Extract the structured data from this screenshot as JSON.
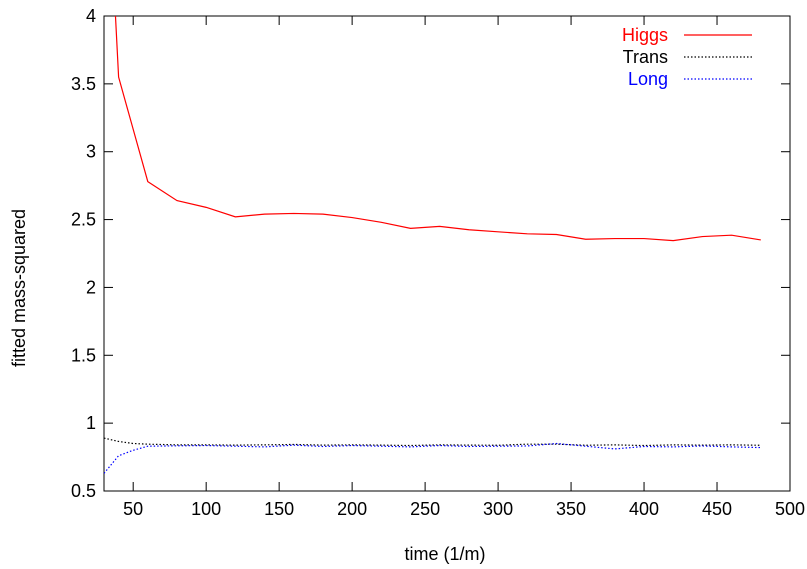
{
  "chart_data": {
    "type": "line",
    "title": "",
    "xlabel": "time (1/m)",
    "ylabel": "fitted mass-squared",
    "xlim": [
      30,
      500
    ],
    "ylim": [
      0.5,
      4
    ],
    "xticks": [
      50,
      100,
      150,
      200,
      250,
      300,
      350,
      400,
      450,
      500
    ],
    "yticks": [
      0.5,
      1,
      1.5,
      2,
      2.5,
      3,
      3.5,
      4
    ],
    "xtick_labels": [
      "50",
      "100",
      "150",
      "200",
      "250",
      "300",
      "350",
      "400",
      "450",
      "500"
    ],
    "ytick_labels": [
      "0.5",
      "1",
      "1.5",
      "2",
      "2.5",
      "3",
      "3.5",
      "4"
    ],
    "grid": false,
    "legend_position": "top-right",
    "series": [
      {
        "name": "Higgs",
        "color": "#ff0000",
        "style": "solid",
        "x": [
          35,
          40,
          60,
          80,
          100,
          120,
          140,
          160,
          180,
          200,
          220,
          240,
          260,
          280,
          300,
          320,
          340,
          360,
          380,
          400,
          420,
          440,
          460,
          480
        ],
        "y": [
          4.6,
          3.55,
          2.78,
          2.64,
          2.59,
          2.52,
          2.54,
          2.545,
          2.54,
          2.515,
          2.48,
          2.435,
          2.45,
          2.425,
          2.41,
          2.395,
          2.39,
          2.355,
          2.36,
          2.36,
          2.345,
          2.375,
          2.385,
          2.35
        ]
      },
      {
        "name": "Trans",
        "color": "#000000",
        "style": "dotted",
        "x": [
          30,
          40,
          50,
          60,
          80,
          100,
          120,
          140,
          160,
          180,
          200,
          220,
          240,
          260,
          280,
          300,
          320,
          340,
          360,
          380,
          400,
          420,
          440,
          460,
          480
        ],
        "y": [
          0.89,
          0.865,
          0.85,
          0.845,
          0.84,
          0.84,
          0.838,
          0.84,
          0.843,
          0.838,
          0.84,
          0.838,
          0.835,
          0.84,
          0.838,
          0.837,
          0.845,
          0.845,
          0.837,
          0.84,
          0.835,
          0.84,
          0.838,
          0.84,
          0.837
        ]
      },
      {
        "name": "Long",
        "color": "#0000ff",
        "style": "dotted",
        "x": [
          30,
          40,
          50,
          60,
          80,
          100,
          120,
          140,
          160,
          180,
          200,
          220,
          240,
          260,
          280,
          300,
          320,
          340,
          360,
          380,
          400,
          420,
          440,
          460,
          480
        ],
        "y": [
          0.63,
          0.76,
          0.8,
          0.83,
          0.833,
          0.835,
          0.83,
          0.825,
          0.838,
          0.828,
          0.835,
          0.83,
          0.825,
          0.835,
          0.828,
          0.83,
          0.832,
          0.85,
          0.83,
          0.81,
          0.828,
          0.825,
          0.832,
          0.825,
          0.82
        ]
      }
    ]
  }
}
